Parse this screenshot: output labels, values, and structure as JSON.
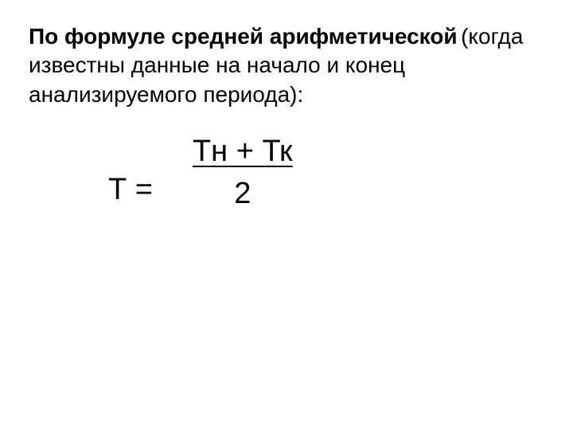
{
  "heading": {
    "bold_text": "По формуле средней арифметической",
    "normal_text": "(когда известны данные на начало и конец анализируемого периода):"
  },
  "formula": {
    "lhs": "Т =",
    "numerator": "Тн + Тк",
    "denominator": "2"
  },
  "styling": {
    "background_color": "#ffffff",
    "text_color": "#000000",
    "heading_fontsize": 28,
    "formula_fontsize": 38,
    "font_family": "Arial"
  }
}
